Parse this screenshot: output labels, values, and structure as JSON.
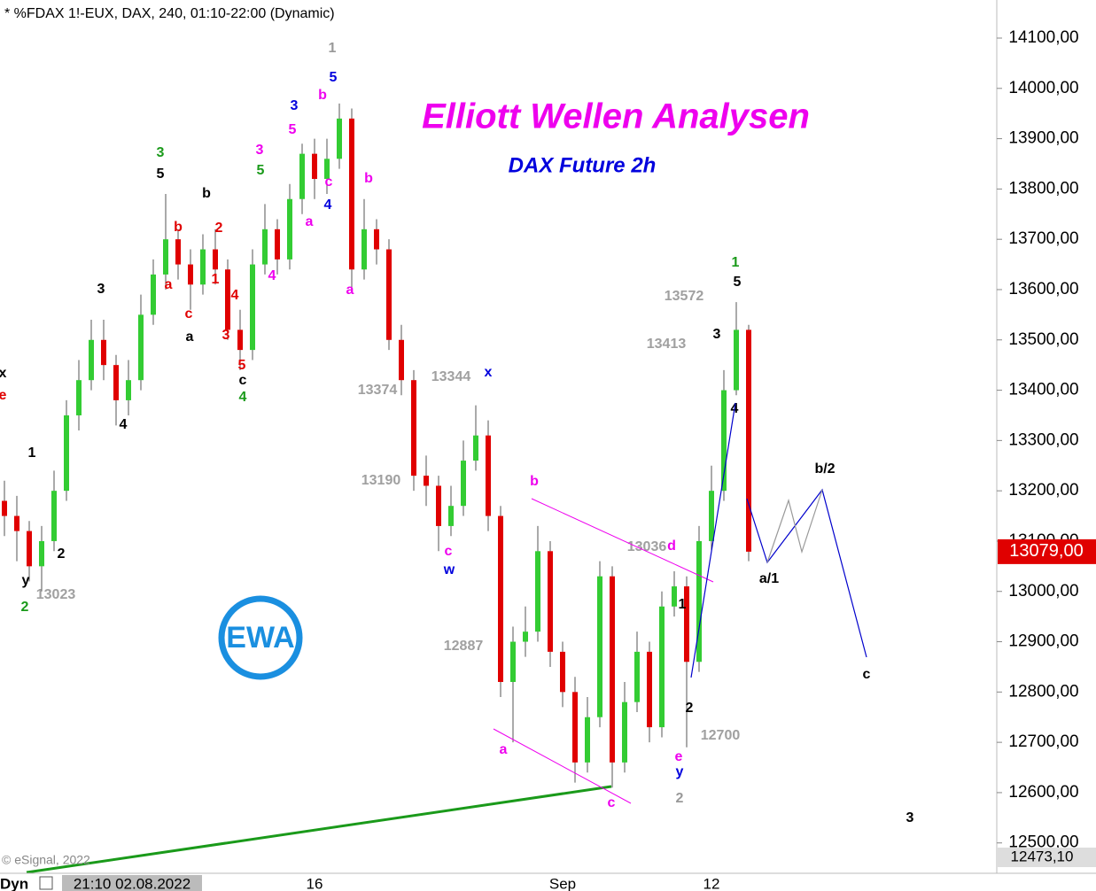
{
  "header": "* %FDAX 1!-EUX, DAX, 240, 01:10-22:00 (Dynamic)",
  "chart_data": {
    "type": "candlestick",
    "title": "Elliott Wellen Analysen",
    "subtitle": "DAX Future 2h",
    "logo": "EWA",
    "copyright": "© eSignal, 2022",
    "mode": "Dyn",
    "cursor_time": "21:10 02.08.2022",
    "up_color": "#33cc33",
    "down_color": "#e00000",
    "categories": [
      null,
      null,
      null,
      null,
      null,
      null,
      null,
      null,
      null,
      null,
      null,
      null,
      null,
      null,
      null,
      null,
      null,
      null,
      null,
      null,
      null,
      null,
      null,
      null,
      null,
      "16",
      null,
      null,
      null,
      null,
      null,
      null,
      null,
      null,
      null,
      null,
      null,
      null,
      null,
      null,
      null,
      null,
      null,
      null,
      null,
      "Sep",
      null,
      null,
      null,
      null,
      null,
      null,
      null,
      null,
      null,
      null,
      null,
      "12",
      null,
      null,
      null
    ],
    "open": [
      13180,
      13150,
      13120,
      13050,
      13100,
      13200,
      13350,
      13420,
      13500,
      13450,
      13380,
      13420,
      13550,
      13630,
      13700,
      13650,
      13610,
      13680,
      13640,
      13520,
      13480,
      13650,
      13720,
      13660,
      13780,
      13870,
      13820,
      13860,
      13940,
      13640,
      13720,
      13680,
      13500,
      13420,
      13230,
      13210,
      13130,
      13170,
      13260,
      13310,
      13150,
      12820,
      12900,
      12920,
      13080,
      12880,
      12800,
      12660,
      12750,
      13030,
      12660,
      12780,
      12880,
      12730,
      12970,
      13010,
      12860,
      13100,
      13200,
      13400,
      13520
    ],
    "high": [
      13220,
      13190,
      13140,
      13130,
      13240,
      13380,
      13460,
      13540,
      13540,
      13470,
      13460,
      13590,
      13660,
      13790,
      13720,
      13680,
      13710,
      13720,
      13660,
      13560,
      13680,
      13770,
      13740,
      13810,
      13890,
      13900,
      13900,
      13970,
      13960,
      13780,
      13740,
      13700,
      13530,
      13440,
      13270,
      13230,
      13210,
      13300,
      13370,
      13340,
      13170,
      12930,
      12970,
      13130,
      13100,
      12900,
      12830,
      12790,
      13060,
      13050,
      12820,
      12920,
      12900,
      13000,
      13040,
      13030,
      13130,
      13250,
      13440,
      13575,
      13530
    ],
    "low": [
      13110,
      13060,
      13020,
      13000,
      13080,
      13180,
      13320,
      13400,
      13420,
      13330,
      13350,
      13400,
      13530,
      13600,
      13620,
      13560,
      13590,
      13610,
      13500,
      13440,
      13460,
      13630,
      13630,
      13640,
      13750,
      13780,
      13790,
      13840,
      13600,
      13620,
      13650,
      13480,
      13390,
      13200,
      13170,
      13080,
      13110,
      13150,
      13240,
      13120,
      12790,
      12700,
      12870,
      12900,
      12850,
      12770,
      12620,
      12640,
      12730,
      12610,
      12640,
      12760,
      12700,
      12710,
      12950,
      12690,
      12840,
      13080,
      13180,
      13390,
      13060
    ],
    "close": [
      13150,
      13120,
      13050,
      13100,
      13200,
      13350,
      13420,
      13500,
      13450,
      13380,
      13420,
      13550,
      13630,
      13700,
      13650,
      13610,
      13680,
      13640,
      13520,
      13480,
      13650,
      13720,
      13660,
      13780,
      13870,
      13820,
      13860,
      13940,
      13640,
      13720,
      13680,
      13500,
      13420,
      13230,
      13210,
      13130,
      13170,
      13260,
      13310,
      13150,
      12820,
      12900,
      12920,
      13080,
      12880,
      12800,
      12660,
      12750,
      13030,
      12660,
      12780,
      12880,
      12730,
      12970,
      13010,
      12860,
      13100,
      13200,
      13400,
      13520,
      13079
    ],
    "ylim": [
      12473.1,
      14175.7
    ],
    "yticks": [
      {
        "value": 12500,
        "label": "12500,00"
      },
      {
        "value": 12600,
        "label": "12600,00"
      },
      {
        "value": 12700,
        "label": "12700,00"
      },
      {
        "value": 12800,
        "label": "12800,00"
      },
      {
        "value": 12900,
        "label": "12900,00"
      },
      {
        "value": 13000,
        "label": "13000,00"
      },
      {
        "value": 13100,
        "label": "13100,00"
      },
      {
        "value": 13200,
        "label": "13200,00"
      },
      {
        "value": 13300,
        "label": "13300,00"
      },
      {
        "value": 13400,
        "label": "13400,00"
      },
      {
        "value": 13500,
        "label": "13500,00"
      },
      {
        "value": 13600,
        "label": "13600,00"
      },
      {
        "value": 13700,
        "label": "13700,00"
      },
      {
        "value": 13800,
        "label": "13800,00"
      },
      {
        "value": 13900,
        "label": "13900,00"
      },
      {
        "value": 14000,
        "label": "14000,00"
      },
      {
        "value": 14100,
        "label": "14100,00"
      }
    ],
    "last_price": {
      "value": 13079,
      "label": "13079,00",
      "color": "#e00000"
    },
    "axis_low": {
      "value": 12473.1,
      "label": "12473,10"
    },
    "annotations": [
      {
        "text": "1",
        "color": "#999999"
      },
      {
        "text": "5",
        "color": "#0000dd"
      },
      {
        "text": "b",
        "color": "#ee00ee"
      },
      {
        "text": "3",
        "color": "#0000dd"
      },
      {
        "text": "5",
        "color": "#ee00ee"
      },
      {
        "text": "c",
        "color": "#ee00ee"
      },
      {
        "text": "4",
        "color": "#0000dd"
      },
      {
        "text": "a",
        "color": "#ee00ee"
      },
      {
        "text": "b",
        "color": "#ee00ee"
      },
      {
        "text": "a",
        "color": "#ee00ee"
      },
      {
        "text": "3",
        "color": "#1a9a1a"
      },
      {
        "text": "5",
        "color": "#000000"
      },
      {
        "text": "b",
        "color": "#000000"
      },
      {
        "text": "b",
        "color": "#e00000"
      },
      {
        "text": "2",
        "color": "#e00000"
      },
      {
        "text": "3",
        "color": "#ee00ee"
      },
      {
        "text": "5",
        "color": "#1a9a1a"
      },
      {
        "text": "4",
        "color": "#ee00ee"
      },
      {
        "text": "a",
        "color": "#e00000"
      },
      {
        "text": "1",
        "color": "#e00000"
      },
      {
        "text": "4",
        "color": "#e00000"
      },
      {
        "text": "c",
        "color": "#e00000"
      },
      {
        "text": "3",
        "color": "#e00000"
      },
      {
        "text": "a",
        "color": "#000000"
      },
      {
        "text": "5",
        "color": "#e00000"
      },
      {
        "text": "c",
        "color": "#000000"
      },
      {
        "text": "4",
        "color": "#1a9a1a"
      },
      {
        "text": "3",
        "color": "#000000"
      },
      {
        "text": "4",
        "color": "#000000"
      },
      {
        "text": "1",
        "color": "#000000"
      },
      {
        "text": "2",
        "color": "#000000"
      },
      {
        "text": "y",
        "color": "#000000"
      },
      {
        "text": "2",
        "color": "#1a9a1a"
      },
      {
        "text": "x",
        "color": "#000000"
      },
      {
        "text": "e",
        "color": "#e00000"
      },
      {
        "text": "13023",
        "color": "#a0a0a0"
      },
      {
        "text": "13374",
        "color": "#a0a0a0"
      },
      {
        "text": "13344",
        "color": "#a0a0a0"
      },
      {
        "text": "x",
        "color": "#0000dd"
      },
      {
        "text": "13190",
        "color": "#a0a0a0"
      },
      {
        "text": "c",
        "color": "#ee00ee"
      },
      {
        "text": "w",
        "color": "#0000dd"
      },
      {
        "text": "b",
        "color": "#ee00ee"
      },
      {
        "text": "12887",
        "color": "#a0a0a0"
      },
      {
        "text": "a",
        "color": "#ee00ee"
      },
      {
        "text": "c",
        "color": "#ee00ee"
      },
      {
        "text": "13036",
        "color": "#a0a0a0"
      },
      {
        "text": "d",
        "color": "#ee00ee"
      },
      {
        "text": "1",
        "color": "#000000"
      },
      {
        "text": "2",
        "color": "#000000"
      },
      {
        "text": "12700",
        "color": "#a0a0a0"
      },
      {
        "text": "e",
        "color": "#ee00ee"
      },
      {
        "text": "y",
        "color": "#0000dd"
      },
      {
        "text": "2",
        "color": "#999999"
      },
      {
        "text": "13572",
        "color": "#a0a0a0"
      },
      {
        "text": "13413",
        "color": "#a0a0a0"
      },
      {
        "text": "1",
        "color": "#1a9a1a"
      },
      {
        "text": "5",
        "color": "#000000"
      },
      {
        "text": "3",
        "color": "#000000"
      },
      {
        "text": "4",
        "color": "#000000"
      },
      {
        "text": "a/1",
        "color": "#000000"
      },
      {
        "text": "b/2",
        "color": "#000000"
      },
      {
        "text": "c",
        "color": "#000000"
      },
      {
        "text": "3",
        "color": "#000000"
      }
    ]
  }
}
